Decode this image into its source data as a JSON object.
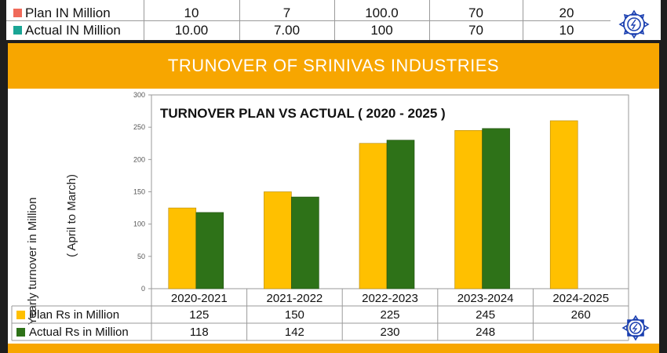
{
  "top_table": {
    "rows": [
      {
        "label": "Plan IN Million",
        "color": "#f06a5a",
        "values": [
          "10",
          "7",
          "100.0",
          "70",
          "20"
        ]
      },
      {
        "label": "Actual IN Million",
        "color": "#1aa595",
        "values": [
          "10.00",
          "7.00",
          "100",
          "70",
          "10"
        ]
      }
    ]
  },
  "banner": {
    "title": "TRUNOVER OF SRINIVAS INDUSTRIES"
  },
  "chart_data": {
    "type": "bar",
    "title": "TURNOVER PLAN VS ACTUAL ( 2020 - 2025 )",
    "ylabel": "Yearly turnover in Million",
    "ylabel2": "( April to March)",
    "ylim": [
      0,
      300
    ],
    "yticks": [
      0,
      50,
      100,
      150,
      200,
      250,
      300
    ],
    "categories": [
      "2020-2021",
      "2021-2022",
      "2022-2023",
      "2023-2024",
      "2024-2025"
    ],
    "series": [
      {
        "name": "Plan Rs in Million",
        "color": "#ffc000",
        "values": [
          125,
          150,
          225,
          245,
          260
        ]
      },
      {
        "name": "Actual Rs in Million",
        "color": "#2e7218",
        "values": [
          118,
          142,
          230,
          248,
          null
        ]
      }
    ],
    "grid": false,
    "legend": "table-bottom"
  },
  "colors": {
    "banner": "#f7a600",
    "page_bg": "#1e1e1e"
  },
  "icons": {
    "logo": "sprocket-logo-icon"
  }
}
